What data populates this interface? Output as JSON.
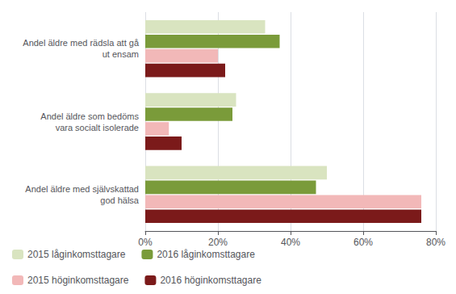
{
  "chart_data": {
    "type": "bar",
    "orientation": "horizontal",
    "categories": [
      "Andel äldre med rädsla att gå\nut ensam",
      "Andel äldre som bedöms\nvara socialt isolerade",
      "Andel äldre med självskattad\ngod hälsa"
    ],
    "series": [
      {
        "name": "2015 låginkomsttagare",
        "values": [
          0.33,
          0.25,
          0.5
        ],
        "color": "#d9e4c0"
      },
      {
        "name": "2016 låginkomsttagare",
        "values": [
          0.37,
          0.24,
          0.47
        ],
        "color": "#7a9b3a"
      },
      {
        "name": "2015 höginkomsttagare",
        "values": [
          0.2,
          0.065,
          0.76
        ],
        "color": "#f2b8b8"
      },
      {
        "name": "2016 höginkomsttagare",
        "values": [
          0.22,
          0.1,
          0.76
        ],
        "color": "#7b1a1a"
      }
    ],
    "xlim": [
      0,
      0.8
    ],
    "xticks": [
      {
        "value": 0,
        "label": "0%"
      },
      {
        "value": 0.2,
        "label": "20%"
      },
      {
        "value": 0.4,
        "label": "40%"
      },
      {
        "value": 0.6,
        "label": "60%"
      },
      {
        "value": 0.8,
        "label": "80%"
      }
    ],
    "grid": true,
    "legend": "bottom"
  }
}
